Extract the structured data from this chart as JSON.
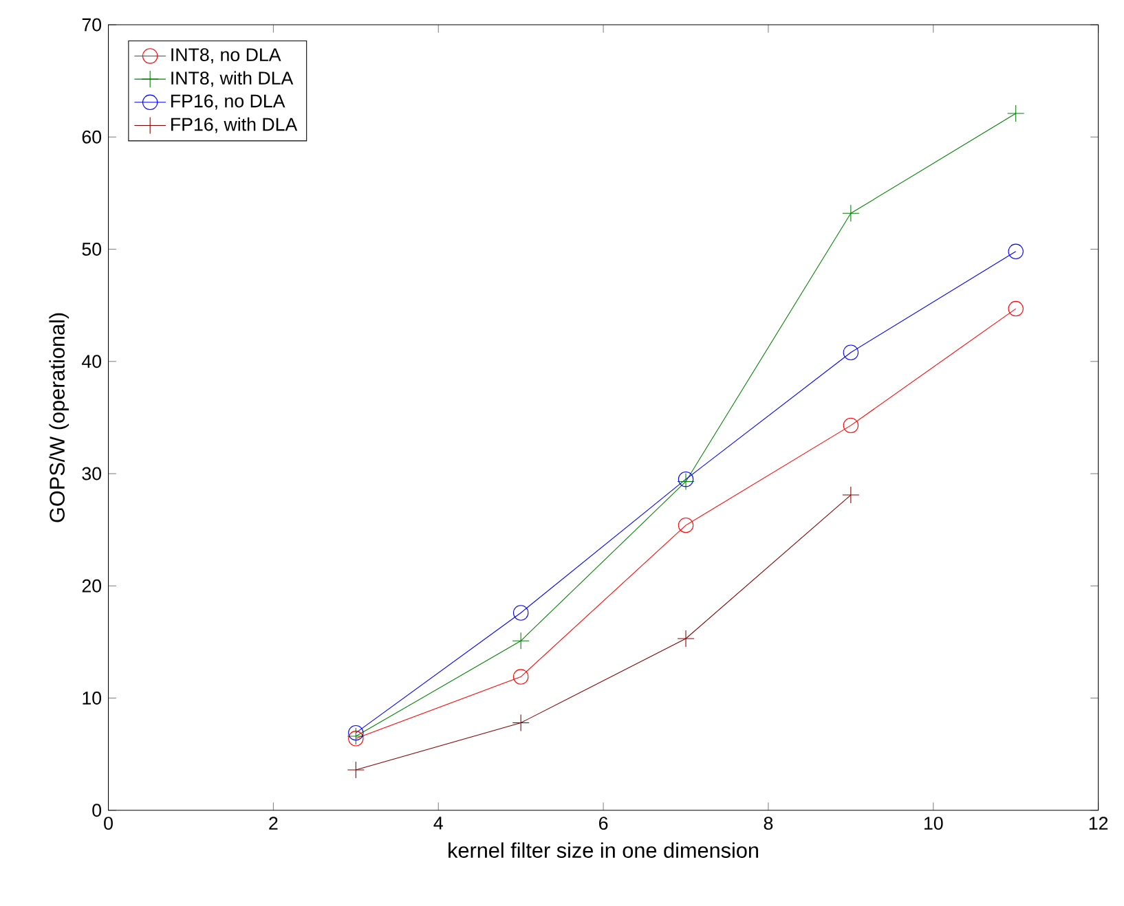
{
  "chart_data": {
    "type": "line",
    "xlabel": "kernel filter size in one dimension",
    "ylabel": "GOPS/W (operational)",
    "xlim": [
      0,
      12
    ],
    "ylim": [
      0,
      70
    ],
    "xticks": [
      0,
      2,
      4,
      6,
      8,
      10,
      12
    ],
    "yticks": [
      0,
      10,
      20,
      30,
      40,
      50,
      60,
      70
    ],
    "legend": "top left",
    "x": [
      3,
      5,
      7,
      9,
      11
    ],
    "series": [
      {
        "name": "INT8, no DLA",
        "color": "#ff0000",
        "marker": "circle",
        "values": [
          6.4,
          11.9,
          25.4,
          34.3,
          44.7
        ]
      },
      {
        "name": "INT8, with DLA",
        "color": "#008000",
        "marker": "cross",
        "values": [
          6.6,
          15.1,
          29.3,
          53.2,
          62.1
        ]
      },
      {
        "name": "FP16, no DLA",
        "color": "#0000ff",
        "marker": "circle",
        "values": [
          6.9,
          17.6,
          29.5,
          40.8,
          49.8
        ]
      },
      {
        "name": "FP16, with DLA",
        "color": "#800000",
        "marker": "cross",
        "values": [
          3.6,
          7.8,
          15.3,
          28.1,
          null
        ]
      }
    ]
  }
}
